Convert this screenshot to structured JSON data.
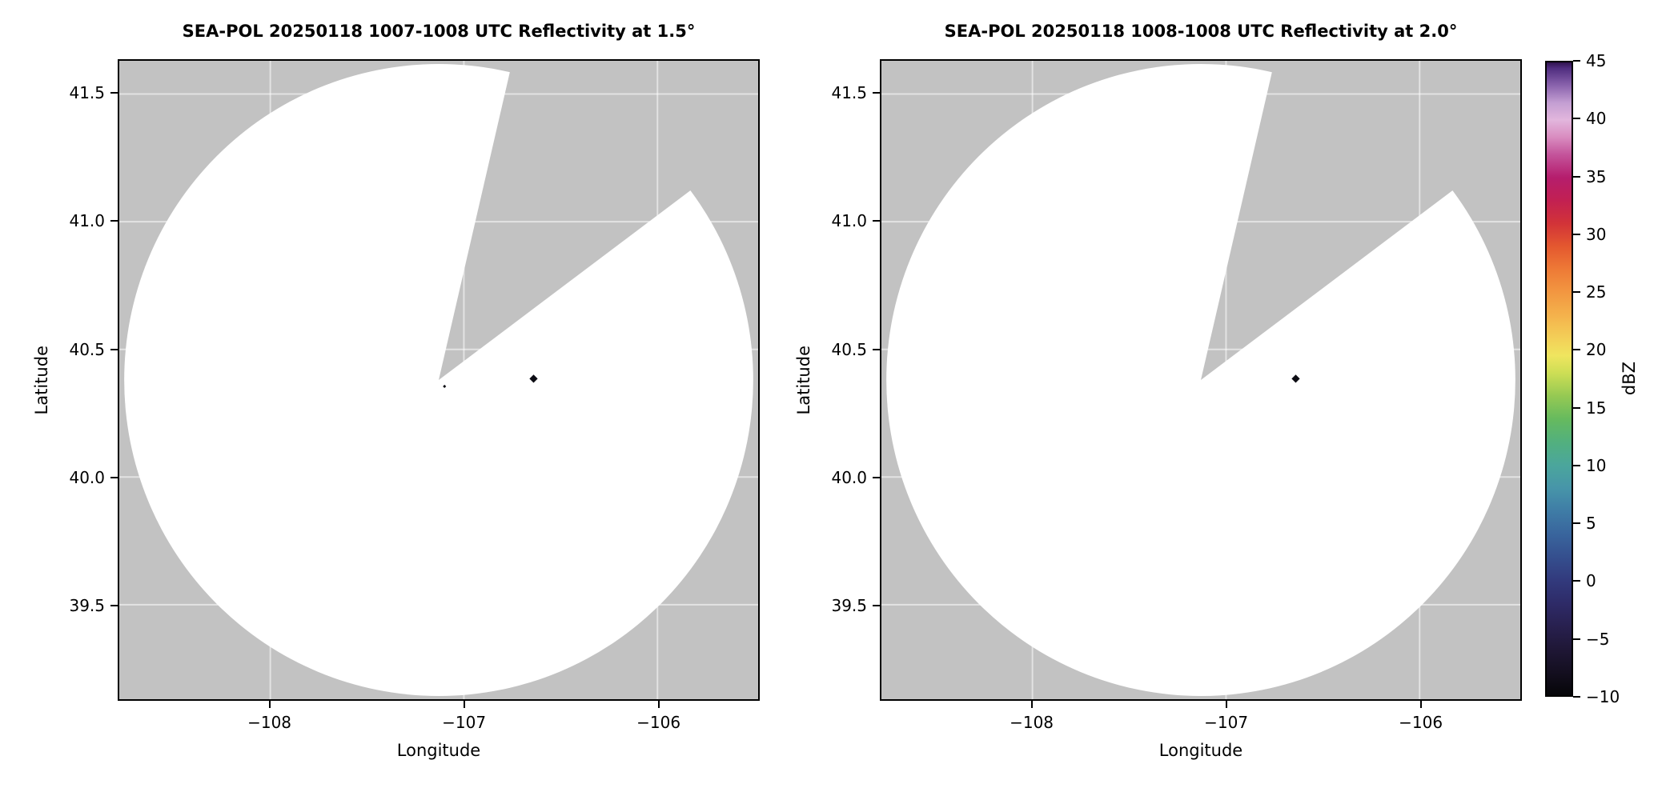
{
  "figure": {
    "background_color": "#ffffff"
  },
  "chart_data": {
    "type": "heatmap",
    "subtype": "radar_ppi_pair",
    "panels": [
      {
        "title": "SEA-POL 20250118 1007-1008 UTC Reflectivity at 1.5°",
        "xlabel": "Longitude",
        "ylabel": "Latitude",
        "xlim": [
          -108.78,
          -105.48
        ],
        "ylim": [
          39.13,
          41.63
        ],
        "xtick_values": [
          -108,
          -107,
          -106
        ],
        "xtick_labels": [
          "−108",
          "−107",
          "−106"
        ],
        "ytick_values": [
          39.5,
          40.0,
          40.5,
          41.0,
          41.5
        ],
        "ytick_labels": [
          "39.5",
          "40.0",
          "40.5",
          "41.0",
          "41.5"
        ],
        "background_color": "#c2c2c2",
        "coverage_color": "#ffffff",
        "grid_color": "rgba(255,255,255,0.55)",
        "radar": {
          "center_lon": -107.13,
          "center_lat": 40.38,
          "radius_lat_deg": 1.2375
        },
        "missing_sector_azimuth_deg": [
          13,
          53
        ],
        "echoes": [
          {
            "lon": -107.1,
            "lat": 40.355,
            "extent_deg": 0.012,
            "color": "#0d0d14"
          },
          {
            "lon": -106.64,
            "lat": 40.385,
            "extent_deg": 0.03,
            "color": "#0d0d14"
          }
        ]
      },
      {
        "title": "SEA-POL 20250118 1008-1008 UTC Reflectivity at 2.0°",
        "xlabel": "Longitude",
        "ylabel": "Latitude",
        "xlim": [
          -108.78,
          -105.48
        ],
        "ylim": [
          39.13,
          41.63
        ],
        "xtick_values": [
          -108,
          -107,
          -106
        ],
        "xtick_labels": [
          "−108",
          "−107",
          "−106"
        ],
        "ytick_values": [
          39.5,
          40.0,
          40.5,
          41.0,
          41.5
        ],
        "ytick_labels": [
          "39.5",
          "40.0",
          "40.5",
          "41.0",
          "41.5"
        ],
        "background_color": "#c2c2c2",
        "coverage_color": "#ffffff",
        "grid_color": "rgba(255,255,255,0.55)",
        "radar": {
          "center_lon": -107.13,
          "center_lat": 40.38,
          "radius_lat_deg": 1.2375
        },
        "missing_sector_azimuth_deg": [
          13,
          53
        ],
        "echoes": [
          {
            "lon": -106.64,
            "lat": 40.385,
            "extent_deg": 0.03,
            "color": "#0d0d14"
          }
        ]
      }
    ],
    "colorbar": {
      "label": "dBZ",
      "min": -10,
      "max": 45,
      "tick_values": [
        45,
        40,
        35,
        30,
        25,
        20,
        15,
        10,
        5,
        0,
        -5,
        -10
      ],
      "tick_labels": [
        "45",
        "40",
        "35",
        "30",
        "25",
        "20",
        "15",
        "10",
        "5",
        "0",
        "−5",
        "−10"
      ],
      "stops": [
        {
          "value": -10,
          "color": "#060608"
        },
        {
          "value": -8,
          "color": "#140f20"
        },
        {
          "value": -6,
          "color": "#1f1736"
        },
        {
          "value": -4,
          "color": "#28204f"
        },
        {
          "value": -2,
          "color": "#2e2b68"
        },
        {
          "value": 0,
          "color": "#323a7d"
        },
        {
          "value": 2,
          "color": "#354f8e"
        },
        {
          "value": 4,
          "color": "#39659d"
        },
        {
          "value": 6,
          "color": "#3f7ca6"
        },
        {
          "value": 8,
          "color": "#4795a9"
        },
        {
          "value": 10,
          "color": "#4ba69c"
        },
        {
          "value": 12,
          "color": "#52b07e"
        },
        {
          "value": 14,
          "color": "#66ba5e"
        },
        {
          "value": 16,
          "color": "#95c953"
        },
        {
          "value": 18,
          "color": "#cdde55"
        },
        {
          "value": 19.5,
          "color": "#efe55f"
        },
        {
          "value": 21,
          "color": "#f3d058"
        },
        {
          "value": 23,
          "color": "#f4b24c"
        },
        {
          "value": 25,
          "color": "#f29741"
        },
        {
          "value": 27,
          "color": "#ee7a36"
        },
        {
          "value": 29,
          "color": "#e4582f"
        },
        {
          "value": 31,
          "color": "#d23338"
        },
        {
          "value": 33,
          "color": "#c22052"
        },
        {
          "value": 35,
          "color": "#b51d6d"
        },
        {
          "value": 37,
          "color": "#c4549b"
        },
        {
          "value": 38.5,
          "color": "#d98cc0"
        },
        {
          "value": 40,
          "color": "#e2b6dd"
        },
        {
          "value": 41.5,
          "color": "#c39ed2"
        },
        {
          "value": 43,
          "color": "#8a63ad"
        },
        {
          "value": 44.5,
          "color": "#4f2d7f"
        },
        {
          "value": 45,
          "color": "#30124e"
        }
      ]
    }
  }
}
